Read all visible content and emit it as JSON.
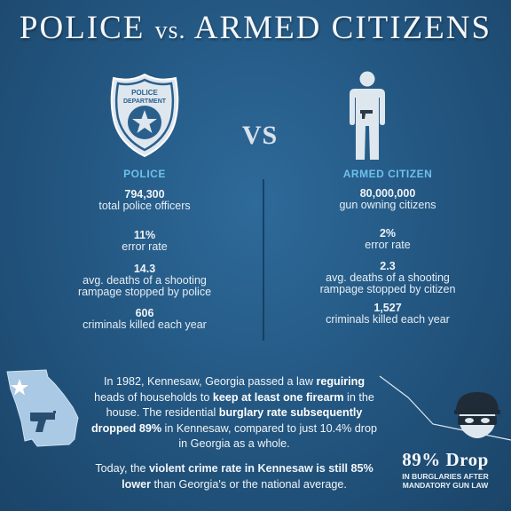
{
  "title": {
    "main": "POLICE",
    "vs": "vs.",
    "rest": "ARMED CITIZENS"
  },
  "badge": {
    "line1": "POLICE",
    "line2": "DEPARTMENT"
  },
  "vs_label": "VS",
  "left": {
    "heading": "POLICE",
    "stats": [
      {
        "value": "794,300",
        "label": "total police officers"
      },
      {
        "value": "11%",
        "label": "error rate"
      },
      {
        "value": "14.3",
        "label": "avg. deaths of a shooting",
        "label2": "rampage stopped by police"
      },
      {
        "value": "606",
        "label": "criminals killed each year"
      }
    ]
  },
  "right": {
    "heading": "ARMED CITIZEN",
    "stats": [
      {
        "value": "80,000,000",
        "label": "gun owning citizens"
      },
      {
        "value": "2%",
        "label": "error rate"
      },
      {
        "value": "2.3",
        "label": "avg. deaths of a shooting",
        "label2": "rampage stopped by citizen"
      },
      {
        "value": "1,527",
        "label": "criminals killed each year"
      }
    ]
  },
  "story": {
    "p1": {
      "t1": "In 1982, Kennesaw, Georgia passed a law ",
      "b1": "reguiring",
      "t2": " heads of households to ",
      "b2": "keep at least one firearm",
      "t3": " in the house. The residential ",
      "b3": "burglary rate subsequently dropped 89%",
      "t4": " in Kennesaw, compared to just 10.4% drop in Georgia as a whole."
    },
    "p2": {
      "t1": "Today, the ",
      "b1": "violent crime rate in Kennesaw is still 85% lower",
      "t2": " than Georgia's or the national average."
    }
  },
  "drop": {
    "big": "89% Drop",
    "small1": "IN BURGLARIES AFTER",
    "small2": "MANDATORY GUN LAW"
  },
  "colors": {
    "background": "#22557f",
    "accent": "#6ec0ee",
    "text": "#ffffff",
    "map_fill": "#a9c9e4"
  },
  "icons": [
    "police-badge-icon",
    "armed-person-icon",
    "georgia-map-icon",
    "handgun-icon",
    "star-icon",
    "burglar-icon",
    "trend-line-icon"
  ]
}
